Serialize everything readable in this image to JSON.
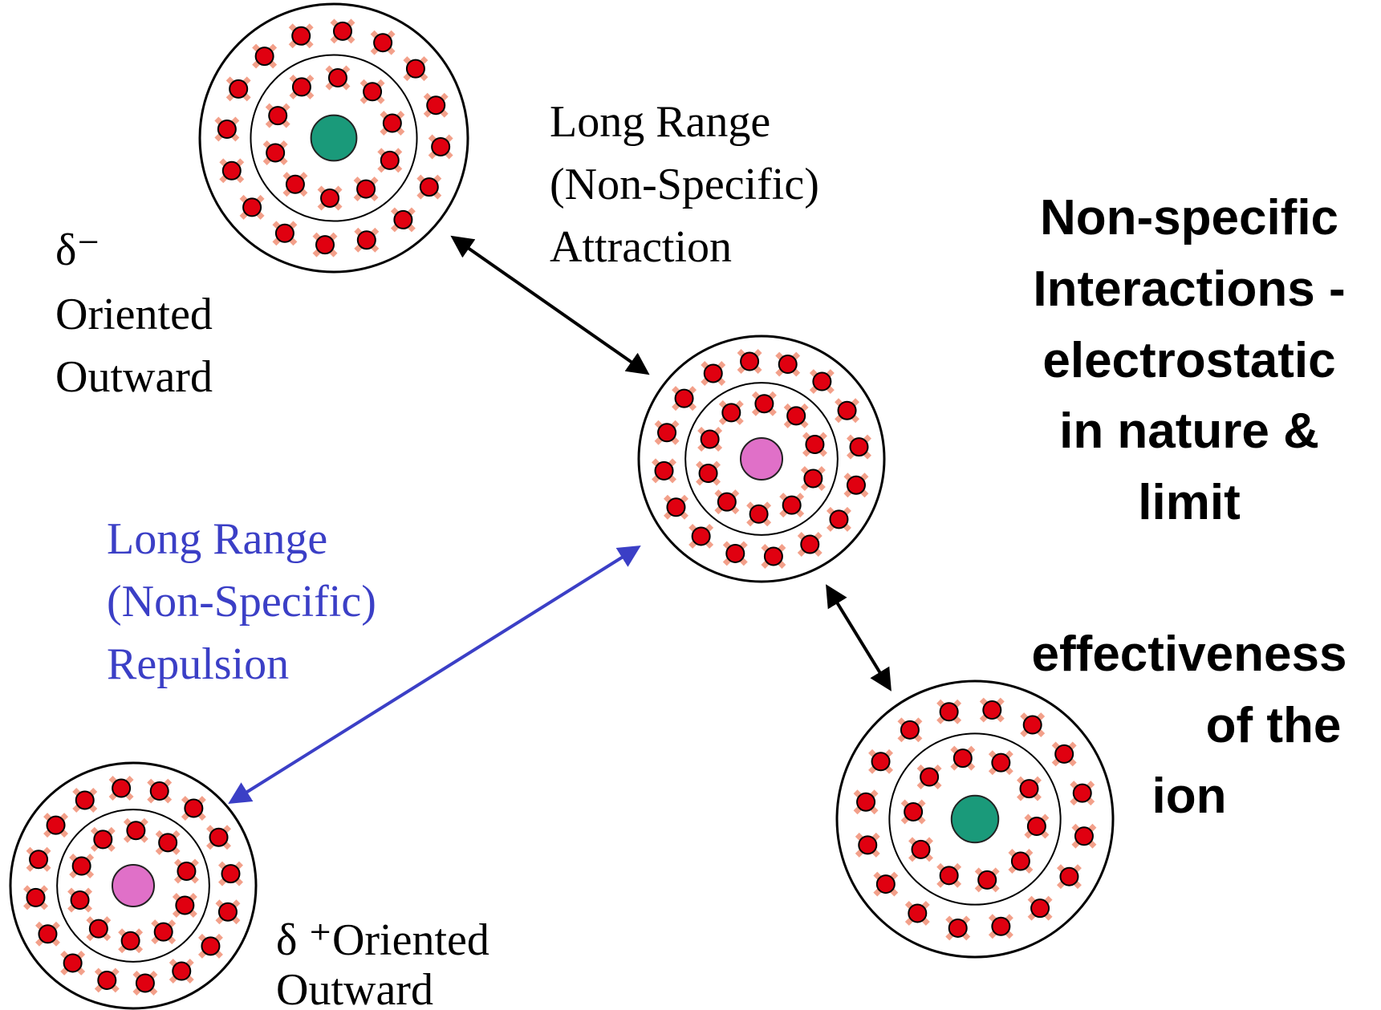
{
  "attraction": {
    "lines": [
      "Long Range",
      "(Non-Specific)",
      "Attraction"
    ]
  },
  "negative_ion": {
    "lines": [
      "δ⁻",
      "Oriented",
      "Outward"
    ]
  },
  "repulsion": {
    "lines": [
      "Long Range",
      "(Non-Specific)",
      "Repulsion"
    ]
  },
  "positive_ion": {
    "lines": [
      "δ ⁺Oriented",
      "Outward"
    ]
  },
  "statement": {
    "lines": [
      "Non-specific",
      "Interactions -",
      "electrostatic",
      "in nature &",
      "limit"
    ],
    "continuation": [
      "effectiveness",
      "of the",
      "ion"
    ]
  }
}
